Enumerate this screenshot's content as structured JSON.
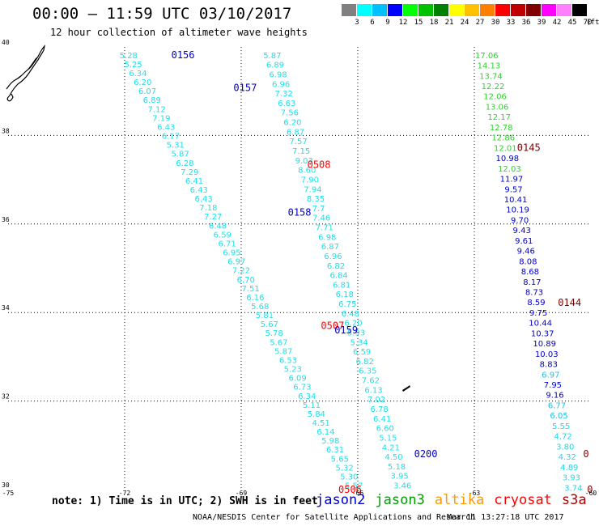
{
  "header": {
    "title": "00:00 – 11:59 UTC 03/10/2017",
    "subtitle": "12 hour collection of altimeter wave heights"
  },
  "colorbar": {
    "unit": "(ft)",
    "cells": [
      {
        "label": "3",
        "color": "#808080"
      },
      {
        "label": "6",
        "color": "#00ffff"
      },
      {
        "label": "9",
        "color": "#00c0ff"
      },
      {
        "label": "12",
        "color": "#0000ff"
      },
      {
        "label": "15",
        "color": "#00ff00"
      },
      {
        "label": "18",
        "color": "#00c000"
      },
      {
        "label": "21",
        "color": "#008000"
      },
      {
        "label": "24",
        "color": "#ffff00"
      },
      {
        "label": "27",
        "color": "#ffc000"
      },
      {
        "label": "30",
        "color": "#ff8000"
      },
      {
        "label": "33",
        "color": "#ff0000"
      },
      {
        "label": "36",
        "color": "#c00000"
      },
      {
        "label": "39",
        "color": "#800000"
      },
      {
        "label": "42",
        "color": "#ff00ff"
      },
      {
        "label": "45",
        "color": "#ff80ff"
      },
      {
        "label": "70",
        "color": "#000000"
      }
    ]
  },
  "footer": {
    "note": "note: 1) Time is in UTC; 2) SWH is in feet",
    "legend": [
      {
        "label": "jason2",
        "color": "#0000d0"
      },
      {
        "label": "jason3",
        "color": "#00a000"
      },
      {
        "label": "altika",
        "color": "#ff9900"
      },
      {
        "label": "cryosat",
        "color": "#ff0000"
      },
      {
        "label": "s3a",
        "color": "#b00000"
      }
    ],
    "credit": "NOAA/NESDIS Center for Satellite Applications and Research",
    "timestamp": "Mar 11 13:27:18 UTC 2017"
  },
  "chart_data": {
    "type": "scatter",
    "title": "00:00 – 11:59 UTC 03/10/2017",
    "xlim": [
      -75,
      -60
    ],
    "ylim": [
      30,
      40
    ],
    "x_ticks": [
      -75,
      -72,
      -69,
      -66,
      -63,
      -60
    ],
    "y_ticks": [
      30,
      32,
      34,
      36,
      38,
      40
    ],
    "grid": true,
    "unit": "ft",
    "tracks": [
      {
        "lon0": -71.9,
        "lat0": 39.82,
        "lon1": -66.1,
        "lat1": 30.1,
        "color": "#20e0e8",
        "values": [
          "5.28",
          "5.25",
          "6.34",
          "6.20",
          "6.07",
          "6.89",
          "7.12",
          "7.19",
          "6.43",
          "6.17",
          "5.31",
          "5.87",
          "6.28",
          "7.29",
          "6.41",
          "6.43",
          "6.43",
          "7.18",
          "7.27",
          "6.48",
          "6.59",
          "6.71",
          "6.95",
          "6.97",
          "7.22",
          "6.70",
          "7.51",
          "6.16",
          "5.68",
          "5.81",
          "5.67",
          "5.78",
          "5.67",
          "5.87",
          "6.53",
          "5.23",
          "6.09",
          "6.73",
          "6.34",
          "5.11",
          "5.84",
          "4.51",
          "6.14",
          "5.98",
          "6.31",
          "5.65",
          "5.32",
          "5.30",
          "5.57"
        ]
      },
      {
        "lon0": -68.2,
        "lat0": 39.82,
        "lon1": -64.85,
        "lat1": 30.1,
        "color": "#20e0e8",
        "values": [
          "5.87",
          "6.89",
          "6.98",
          "6.96",
          "7.32",
          "6.63",
          "7.56",
          "6.20",
          "6.87",
          "7.57",
          "7.15",
          "9.03",
          "8.60",
          "7.90",
          "7.94",
          "8.35",
          "7.7",
          "7.46",
          "7.71",
          "6.98",
          "6.87",
          "6.96",
          "6.82",
          "6.84",
          "6.81",
          "6.18",
          "6.75",
          "6.48",
          "6.20",
          "5.93",
          "5.34",
          "6.59",
          "6.82",
          "6.35",
          "7.62",
          "6.13",
          "7.02",
          "6.78",
          "6.41",
          "6.60",
          "5.15",
          "4.21",
          "4.50",
          "5.18",
          "3.95",
          "3.46"
        ]
      },
      {
        "lon0": -62.68,
        "lat0": 39.82,
        "lon1": -60.45,
        "lat1": 30.05,
        "color": "#00b000",
        "values": [
          "17.06",
          "14.13",
          "13.74",
          "12.22",
          "12.06",
          "13.06",
          "12.17",
          "12.78",
          "12.86",
          "12.01",
          "10.98",
          "12.03",
          "11.97",
          "9.57",
          "10.41",
          "10.19",
          "9.70",
          "9.43",
          "9.61",
          "9.46",
          "8.08",
          "8.68",
          "8.17",
          "8.73",
          "8.59",
          "9.75",
          "10.44",
          "10.37",
          "10.89",
          "10.03",
          "8.83",
          "6.97",
          "7.95",
          "9.16",
          "6.77",
          "6.05",
          "5.55",
          "4.72",
          "3.80",
          "4.32",
          "4.89",
          "3.93",
          "3.74"
        ]
      }
    ],
    "pass_labels": [
      {
        "text": "0156",
        "lon": -70.8,
        "lat": 39.82,
        "color": "#0000c0"
      },
      {
        "text": "0157",
        "lon": -69.2,
        "lat": 39.08,
        "color": "#0000c0"
      },
      {
        "text": "0508",
        "lon": -67.3,
        "lat": 37.34,
        "color": "#ff0000"
      },
      {
        "text": "0145",
        "lon": -61.9,
        "lat": 37.72,
        "color": "#800000"
      },
      {
        "text": "0158",
        "lon": -67.8,
        "lat": 36.26,
        "color": "#0000c0"
      },
      {
        "text": "0144",
        "lon": -60.85,
        "lat": 34.22,
        "color": "#800000"
      },
      {
        "text": "0507",
        "lon": -66.95,
        "lat": 33.7,
        "color": "#ff0000"
      },
      {
        "text": "0159",
        "lon": -66.6,
        "lat": 33.6,
        "color": "#0000c0"
      },
      {
        "text": "0200",
        "lon": -64.55,
        "lat": 30.8,
        "color": "#0000c0"
      },
      {
        "text": "0506",
        "lon": -66.5,
        "lat": 30,
        "color": "#ff0000"
      },
      {
        "text": "0",
        "lon": -60.2,
        "lat": 30.8,
        "color": "#800000"
      },
      {
        "text": "0",
        "lon": -60.1,
        "lat": 30,
        "color": "#800000"
      }
    ]
  }
}
